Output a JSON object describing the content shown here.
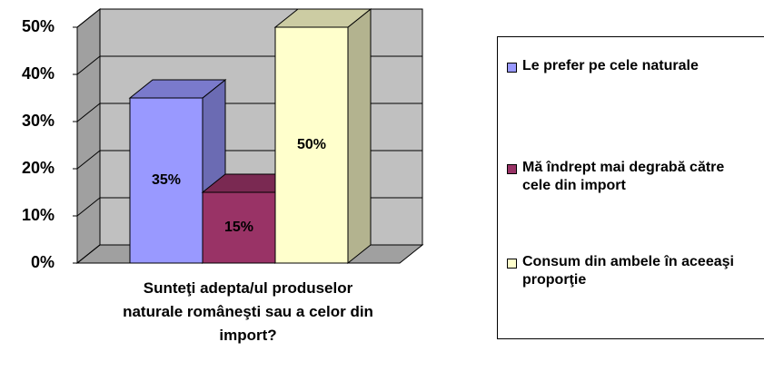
{
  "chart_data": {
    "type": "bar3d",
    "categories": [
      "Sunteţi adepta/ul produselor naturale româneşti sau a celor din import?"
    ],
    "series": [
      {
        "name": "Le prefer pe cele naturale",
        "color": "#9999ff",
        "values": [
          35
        ],
        "value_labels": [
          "35%"
        ]
      },
      {
        "name": "Mă îndrept mai degrabă către cele din import",
        "color": "#993366",
        "values": [
          15
        ],
        "value_labels": [
          "15%"
        ]
      },
      {
        "name": "Consum din ambele în aceeaşi proporţie",
        "color": "#ffffcc",
        "values": [
          50
        ],
        "value_labels": [
          "50%"
        ]
      }
    ],
    "ylim": [
      0,
      50
    ],
    "yticks": [
      {
        "value": 0,
        "label": "0%"
      },
      {
        "value": 10,
        "label": "10%"
      },
      {
        "value": 20,
        "label": "20%"
      },
      {
        "value": 30,
        "label": "30%"
      },
      {
        "value": 40,
        "label": "40%"
      },
      {
        "value": 50,
        "label": "50%"
      }
    ],
    "grid": true,
    "legend": "right"
  }
}
